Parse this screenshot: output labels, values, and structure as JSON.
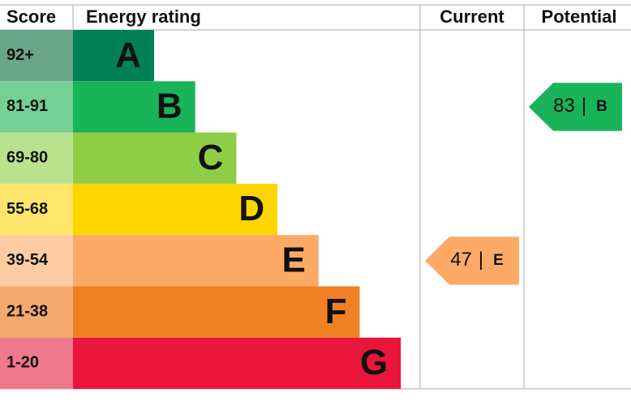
{
  "headers": {
    "score": "Score",
    "rating": "Energy rating",
    "current": "Current",
    "potential": "Potential"
  },
  "bands": [
    {
      "score": "92+",
      "letter": "A",
      "color": "#008054",
      "score_color": "#6aa589"
    },
    {
      "score": "81-91",
      "letter": "B",
      "color": "#19b459",
      "score_color": "#74d094"
    },
    {
      "score": "69-80",
      "letter": "C",
      "color": "#8dce46",
      "score_color": "#bbe28e"
    },
    {
      "score": "55-68",
      "letter": "D",
      "color": "#ffd500",
      "score_color": "#ffe66a"
    },
    {
      "score": "39-54",
      "letter": "E",
      "color": "#fcaa65",
      "score_color": "#fdcca2"
    },
    {
      "score": "21-38",
      "letter": "F",
      "color": "#ef8023",
      "score_color": "#f4a96e"
    },
    {
      "score": "1-20",
      "letter": "G",
      "color": "#e9153b",
      "score_color": "#f0788c"
    }
  ],
  "current": {
    "value": 47,
    "separator": "|",
    "letter": "E"
  },
  "potential": {
    "value": 83,
    "separator": "|",
    "letter": "B"
  }
}
